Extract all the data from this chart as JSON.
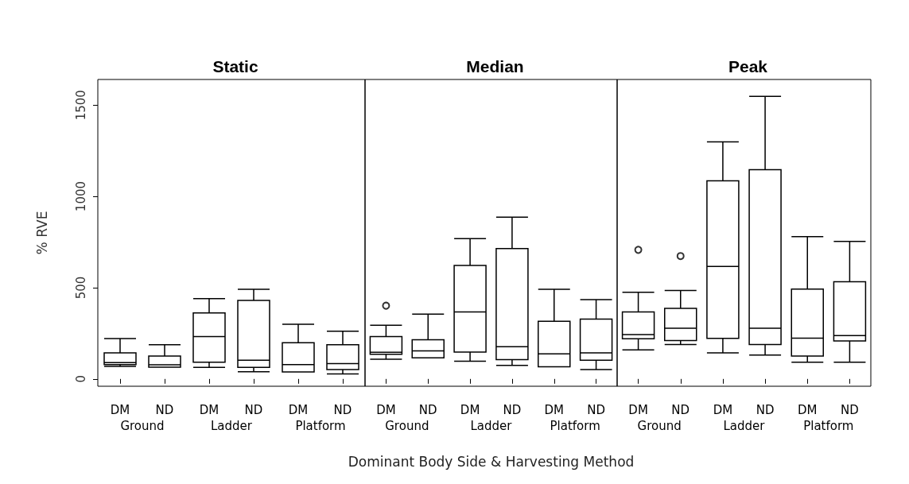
{
  "chart_data": [
    {
      "type": "box",
      "title": "Static",
      "ylabel": "% RVE",
      "categories": [
        "DM",
        "ND",
        "DM",
        "ND",
        "DM",
        "ND"
      ],
      "annotations": [
        "Ground",
        "Ladder",
        "Platform"
      ],
      "ylim": [
        -40,
        1640
      ],
      "yticks": [
        0,
        500,
        1000,
        1500
      ],
      "grid": false,
      "series": [
        {
          "color": "#000000",
          "boxes": [
            {
              "low": 69,
              "q1": 79,
              "median": 89,
              "q3": 143,
              "high": 221
            },
            {
              "low": 65,
              "q1": 65,
              "median": 77,
              "q3": 125,
              "high": 187
            },
            {
              "low": 63,
              "q1": 92,
              "median": 232,
              "q3": 361,
              "high": 440
            },
            {
              "low": 39,
              "q1": 63,
              "median": 102,
              "q3": 430,
              "high": 491
            },
            {
              "low": 38,
              "q1": 38,
              "median": 79,
              "q3": 198,
              "high": 300
            },
            {
              "low": 28,
              "q1": 51,
              "median": 84,
              "q3": 187,
              "high": 261
            }
          ]
        }
      ]
    },
    {
      "type": "box",
      "title": "Median",
      "xlabel": "Dominant Body Side & Harvesting Method",
      "categories": [
        "DM",
        "ND",
        "DM",
        "ND",
        "DM",
        "ND"
      ],
      "annotations": [
        "Ground",
        "Ladder",
        "Platform"
      ],
      "ylim": [
        -40,
        1640
      ],
      "yticks": [
        0,
        500,
        1000,
        1500
      ],
      "grid": false,
      "tick_labels": "x",
      "series": [
        {
          "color": "#000000",
          "boxes": [
            {
              "low": 108,
              "q1": 135,
              "median": 146,
              "q3": 232,
              "high": 294,
              "outliers": [
                401
              ]
            },
            {
              "low": 116,
              "q1": 116,
              "median": 154,
              "q3": 215,
              "high": 355
            },
            {
              "low": 97,
              "q1": 147,
              "median": 367,
              "q3": 622,
              "high": 768
            },
            {
              "low": 74,
              "q1": 106,
              "median": 176,
              "q3": 714,
              "high": 886
            },
            {
              "low": 67,
              "q1": 67,
              "median": 137,
              "q3": 316,
              "high": 491
            },
            {
              "low": 51,
              "q1": 102,
              "median": 143,
              "q3": 328,
              "high": 434
            }
          ]
        }
      ]
    },
    {
      "type": "box",
      "title": "Peak",
      "categories": [
        "DM",
        "ND",
        "DM",
        "ND",
        "DM",
        "ND"
      ],
      "annotations": [
        "Ground",
        "Ladder",
        "Platform"
      ],
      "ylim": [
        -40,
        1640
      ],
      "yticks": [
        0,
        500,
        1000,
        1500
      ],
      "grid": false,
      "tick_labels": "x",
      "series": [
        {
          "color": "#000000",
          "boxes": [
            {
              "low": 159,
              "q1": 220,
              "median": 243,
              "q3": 367,
              "high": 475,
              "outliers": [
                707
              ]
            },
            {
              "low": 188,
              "q1": 210,
              "median": 278,
              "q3": 386,
              "high": 485,
              "outliers": [
                673
              ]
            },
            {
              "low": 143,
              "q1": 222,
              "median": 616,
              "q3": 1085,
              "high": 1298
            },
            {
              "low": 131,
              "q1": 188,
              "median": 278,
              "q3": 1146,
              "high": 1547
            },
            {
              "low": 92,
              "q1": 125,
              "median": 223,
              "q3": 492,
              "high": 779
            },
            {
              "low": 92,
              "q1": 208,
              "median": 237,
              "q3": 532,
              "high": 753
            }
          ]
        }
      ]
    }
  ]
}
